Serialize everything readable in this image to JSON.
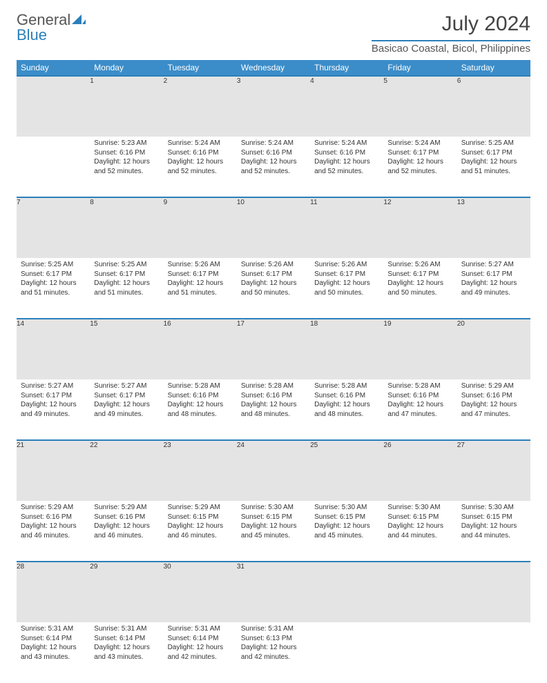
{
  "brand": {
    "part1": "General",
    "part2": "Blue"
  },
  "title": "July 2024",
  "location": "Basicao Coastal, Bicol, Philippines",
  "colors": {
    "header_bg": "#3b8dc9",
    "accent": "#2a7fba",
    "daynum_bg": "#e4e4e4",
    "text": "#333333",
    "muted": "#666666",
    "bg": "#ffffff"
  },
  "day_headers": [
    "Sunday",
    "Monday",
    "Tuesday",
    "Wednesday",
    "Thursday",
    "Friday",
    "Saturday"
  ],
  "weeks": [
    [
      {
        "n": "",
        "sunrise": "",
        "sunset": "",
        "daylight": ""
      },
      {
        "n": "1",
        "sunrise": "Sunrise: 5:23 AM",
        "sunset": "Sunset: 6:16 PM",
        "daylight": "Daylight: 12 hours and 52 minutes."
      },
      {
        "n": "2",
        "sunrise": "Sunrise: 5:24 AM",
        "sunset": "Sunset: 6:16 PM",
        "daylight": "Daylight: 12 hours and 52 minutes."
      },
      {
        "n": "3",
        "sunrise": "Sunrise: 5:24 AM",
        "sunset": "Sunset: 6:16 PM",
        "daylight": "Daylight: 12 hours and 52 minutes."
      },
      {
        "n": "4",
        "sunrise": "Sunrise: 5:24 AM",
        "sunset": "Sunset: 6:16 PM",
        "daylight": "Daylight: 12 hours and 52 minutes."
      },
      {
        "n": "5",
        "sunrise": "Sunrise: 5:24 AM",
        "sunset": "Sunset: 6:17 PM",
        "daylight": "Daylight: 12 hours and 52 minutes."
      },
      {
        "n": "6",
        "sunrise": "Sunrise: 5:25 AM",
        "sunset": "Sunset: 6:17 PM",
        "daylight": "Daylight: 12 hours and 51 minutes."
      }
    ],
    [
      {
        "n": "7",
        "sunrise": "Sunrise: 5:25 AM",
        "sunset": "Sunset: 6:17 PM",
        "daylight": "Daylight: 12 hours and 51 minutes."
      },
      {
        "n": "8",
        "sunrise": "Sunrise: 5:25 AM",
        "sunset": "Sunset: 6:17 PM",
        "daylight": "Daylight: 12 hours and 51 minutes."
      },
      {
        "n": "9",
        "sunrise": "Sunrise: 5:26 AM",
        "sunset": "Sunset: 6:17 PM",
        "daylight": "Daylight: 12 hours and 51 minutes."
      },
      {
        "n": "10",
        "sunrise": "Sunrise: 5:26 AM",
        "sunset": "Sunset: 6:17 PM",
        "daylight": "Daylight: 12 hours and 50 minutes."
      },
      {
        "n": "11",
        "sunrise": "Sunrise: 5:26 AM",
        "sunset": "Sunset: 6:17 PM",
        "daylight": "Daylight: 12 hours and 50 minutes."
      },
      {
        "n": "12",
        "sunrise": "Sunrise: 5:26 AM",
        "sunset": "Sunset: 6:17 PM",
        "daylight": "Daylight: 12 hours and 50 minutes."
      },
      {
        "n": "13",
        "sunrise": "Sunrise: 5:27 AM",
        "sunset": "Sunset: 6:17 PM",
        "daylight": "Daylight: 12 hours and 49 minutes."
      }
    ],
    [
      {
        "n": "14",
        "sunrise": "Sunrise: 5:27 AM",
        "sunset": "Sunset: 6:17 PM",
        "daylight": "Daylight: 12 hours and 49 minutes."
      },
      {
        "n": "15",
        "sunrise": "Sunrise: 5:27 AM",
        "sunset": "Sunset: 6:17 PM",
        "daylight": "Daylight: 12 hours and 49 minutes."
      },
      {
        "n": "16",
        "sunrise": "Sunrise: 5:28 AM",
        "sunset": "Sunset: 6:16 PM",
        "daylight": "Daylight: 12 hours and 48 minutes."
      },
      {
        "n": "17",
        "sunrise": "Sunrise: 5:28 AM",
        "sunset": "Sunset: 6:16 PM",
        "daylight": "Daylight: 12 hours and 48 minutes."
      },
      {
        "n": "18",
        "sunrise": "Sunrise: 5:28 AM",
        "sunset": "Sunset: 6:16 PM",
        "daylight": "Daylight: 12 hours and 48 minutes."
      },
      {
        "n": "19",
        "sunrise": "Sunrise: 5:28 AM",
        "sunset": "Sunset: 6:16 PM",
        "daylight": "Daylight: 12 hours and 47 minutes."
      },
      {
        "n": "20",
        "sunrise": "Sunrise: 5:29 AM",
        "sunset": "Sunset: 6:16 PM",
        "daylight": "Daylight: 12 hours and 47 minutes."
      }
    ],
    [
      {
        "n": "21",
        "sunrise": "Sunrise: 5:29 AM",
        "sunset": "Sunset: 6:16 PM",
        "daylight": "Daylight: 12 hours and 46 minutes."
      },
      {
        "n": "22",
        "sunrise": "Sunrise: 5:29 AM",
        "sunset": "Sunset: 6:16 PM",
        "daylight": "Daylight: 12 hours and 46 minutes."
      },
      {
        "n": "23",
        "sunrise": "Sunrise: 5:29 AM",
        "sunset": "Sunset: 6:15 PM",
        "daylight": "Daylight: 12 hours and 46 minutes."
      },
      {
        "n": "24",
        "sunrise": "Sunrise: 5:30 AM",
        "sunset": "Sunset: 6:15 PM",
        "daylight": "Daylight: 12 hours and 45 minutes."
      },
      {
        "n": "25",
        "sunrise": "Sunrise: 5:30 AM",
        "sunset": "Sunset: 6:15 PM",
        "daylight": "Daylight: 12 hours and 45 minutes."
      },
      {
        "n": "26",
        "sunrise": "Sunrise: 5:30 AM",
        "sunset": "Sunset: 6:15 PM",
        "daylight": "Daylight: 12 hours and 44 minutes."
      },
      {
        "n": "27",
        "sunrise": "Sunrise: 5:30 AM",
        "sunset": "Sunset: 6:15 PM",
        "daylight": "Daylight: 12 hours and 44 minutes."
      }
    ],
    [
      {
        "n": "28",
        "sunrise": "Sunrise: 5:31 AM",
        "sunset": "Sunset: 6:14 PM",
        "daylight": "Daylight: 12 hours and 43 minutes."
      },
      {
        "n": "29",
        "sunrise": "Sunrise: 5:31 AM",
        "sunset": "Sunset: 6:14 PM",
        "daylight": "Daylight: 12 hours and 43 minutes."
      },
      {
        "n": "30",
        "sunrise": "Sunrise: 5:31 AM",
        "sunset": "Sunset: 6:14 PM",
        "daylight": "Daylight: 12 hours and 42 minutes."
      },
      {
        "n": "31",
        "sunrise": "Sunrise: 5:31 AM",
        "sunset": "Sunset: 6:13 PM",
        "daylight": "Daylight: 12 hours and 42 minutes."
      },
      {
        "n": "",
        "sunrise": "",
        "sunset": "",
        "daylight": ""
      },
      {
        "n": "",
        "sunrise": "",
        "sunset": "",
        "daylight": ""
      },
      {
        "n": "",
        "sunrise": "",
        "sunset": "",
        "daylight": ""
      }
    ]
  ]
}
